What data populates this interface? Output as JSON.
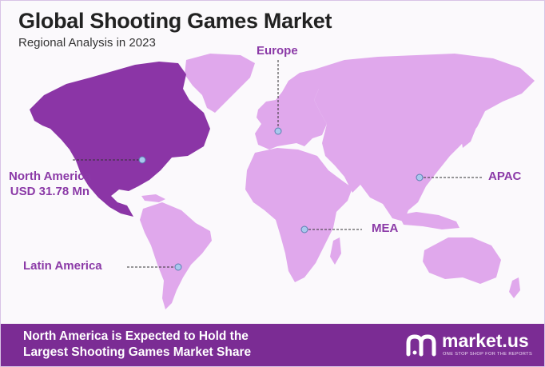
{
  "header": {
    "title": "Global Shooting Games Market",
    "subtitle": "Regional Analysis in 2023"
  },
  "regions": {
    "north_america": {
      "name": "North America",
      "value": "USD 31.78 Mn"
    },
    "europe": {
      "name": "Europe"
    },
    "apac": {
      "name": "APAC"
    },
    "mea": {
      "name": "MEA"
    },
    "latin_america": {
      "name": "Latin America"
    }
  },
  "footer": {
    "line1": "North America is Expected to Hold the",
    "line2": "Largest Shooting Games Market Share"
  },
  "logo": {
    "name": "market.us",
    "tagline": "ONE STOP SHOP FOR THE REPORTS"
  },
  "colors": {
    "highlight_region": "#8b35a6",
    "other_regions": "#e0a8ec",
    "label_text": "#8b3aa7",
    "footer_background": "#7b2c94",
    "marker": "#a9c8ee"
  }
}
